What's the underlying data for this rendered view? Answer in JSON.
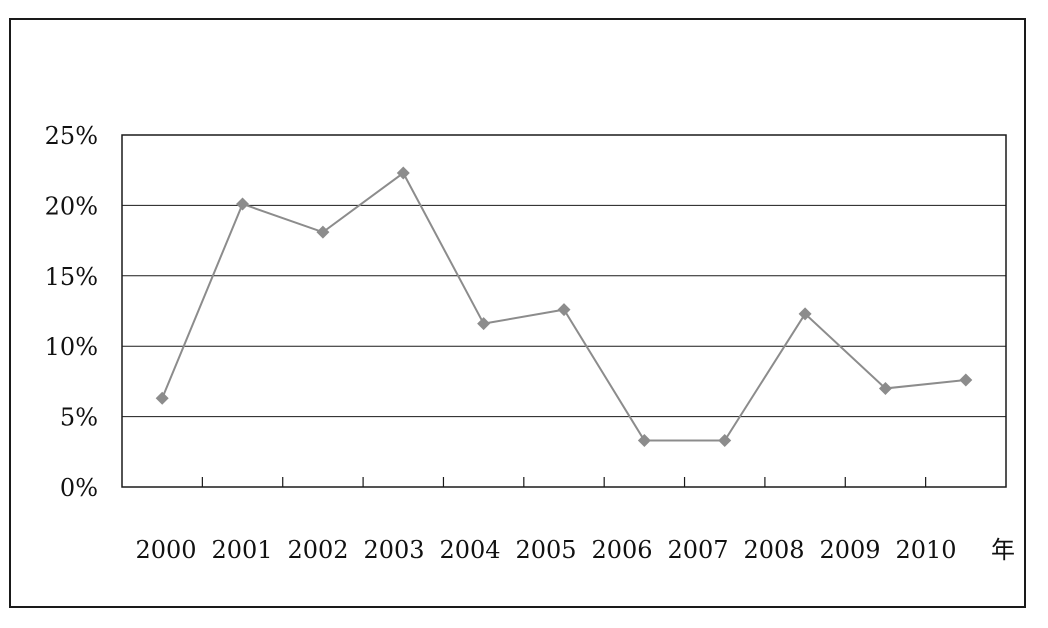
{
  "chart_data": {
    "type": "line",
    "categories": [
      "2000",
      "2001",
      "2002",
      "2003",
      "2004",
      "2005",
      "2006",
      "2007",
      "2008",
      "2009",
      "2010"
    ],
    "series": [
      {
        "values": [
          6.3,
          20.1,
          18.1,
          22.3,
          11.6,
          12.6,
          3.3,
          3.3,
          12.3,
          7.0,
          7.6
        ]
      }
    ],
    "xlabel": "年",
    "ylabel": "",
    "ylim": [
      0,
      25
    ],
    "yticks": [
      0,
      5,
      10,
      15,
      20,
      25
    ],
    "ytick_labels": [
      "0%",
      "5%",
      "10%",
      "15%",
      "20%",
      "25%"
    ],
    "grid": true,
    "colors": {
      "line": "#8c8c8c",
      "marker": "#8c8c8c",
      "axis": "#1a1a1a",
      "grid": "#1a1a1a"
    }
  }
}
